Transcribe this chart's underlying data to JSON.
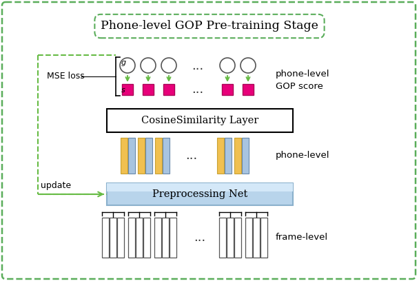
{
  "title": "Phone-level GOP Pre-training Stage",
  "outer_box_color": "#5aad5a",
  "cosine_box_label": "CosineSimilarity Layer",
  "prepro_box_label": "Preprocessing Net",
  "mse_label": "MSE loss",
  "update_label": "update",
  "phone_level_label2": "phone-level",
  "frame_level_label": "frame-level",
  "phone_gop_label": "phone-level\nGOP score",
  "circle_edge": "#555555",
  "square_color": "#e8007a",
  "square_edge": "#aa0055",
  "arrow_color": "#66bb44",
  "bar_blue": "#a8c4e0",
  "bar_yellow": "#f0c050",
  "prepro_fill": "#b8d4eb",
  "prepro_edge": "#8ab0cc",
  "dots_color": "#333333"
}
